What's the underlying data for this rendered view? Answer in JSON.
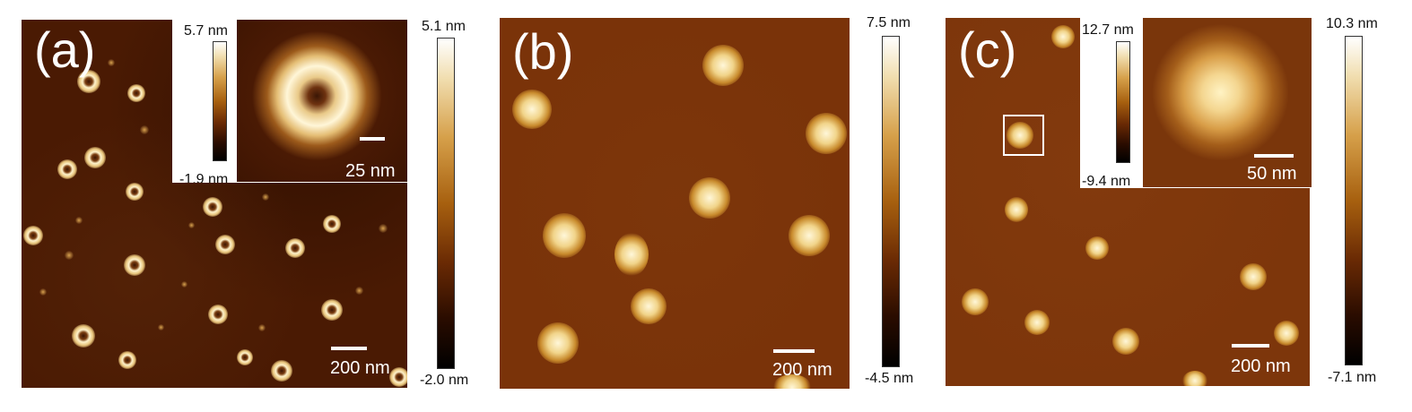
{
  "panels": {
    "a": {
      "label": "(a)",
      "scalebar": "200 nm",
      "colorbar": {
        "max": "5.1 nm",
        "min": "-2.0 nm"
      },
      "inset": {
        "scalebar": "25 nm",
        "colorbar": {
          "max": "5.7 nm",
          "min": "-1.9 nm"
        }
      }
    },
    "b": {
      "label": "(b)",
      "scalebar": "200 nm",
      "colorbar": {
        "max": "7.5 nm",
        "min": "-4.5 nm"
      }
    },
    "c": {
      "label": "(c)",
      "scalebar": "200 nm",
      "colorbar": {
        "max": "10.3 nm",
        "min": "-7.1 nm"
      },
      "inset": {
        "scalebar": "50 nm",
        "colorbar": {
          "max": "12.7 nm",
          "min": "-9.4 nm"
        }
      }
    }
  },
  "colors": {
    "colormap": [
      "#000000",
      "#6a2a04",
      "#a7600f",
      "#d6a04a",
      "#f1deb0",
      "#ffffff"
    ],
    "annotation": "#ffffff"
  }
}
